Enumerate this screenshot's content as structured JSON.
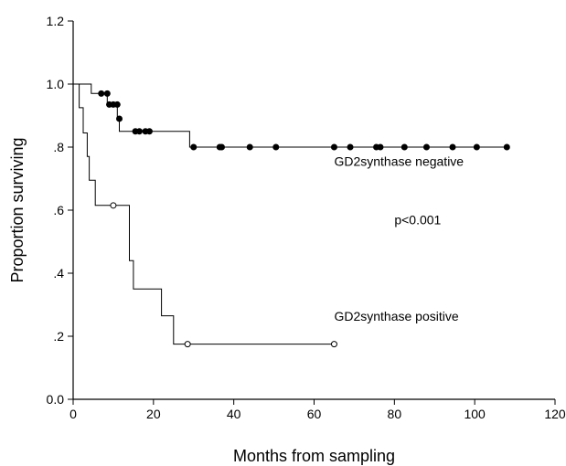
{
  "chart_data": {
    "type": "line",
    "subtype": "kaplan-meier-step",
    "xlabel": "Months from sampling",
    "ylabel": "Proportion surviving",
    "xlim": [
      0,
      120
    ],
    "ylim": [
      0.0,
      1.2
    ],
    "x_ticks": [
      0,
      20,
      40,
      60,
      80,
      100,
      120
    ],
    "x_tick_labels": [
      "0",
      "20",
      "40",
      "60",
      "80",
      "100",
      "120"
    ],
    "y_ticks": [
      0.0,
      0.2,
      0.4,
      0.6,
      0.8,
      1.0,
      1.2
    ],
    "y_tick_labels": [
      "0.0",
      ".2",
      ".4",
      ".6",
      ".8",
      "1.0",
      "1.2"
    ],
    "grid": false,
    "annotations": [
      {
        "text": "GD2synthase negative",
        "x": 65,
        "y": 0.74
      },
      {
        "text": "p<0.001",
        "x": 80,
        "y": 0.555
      },
      {
        "text": "GD2synthase positive",
        "x": 65,
        "y": 0.25
      }
    ],
    "series": [
      {
        "name": "GD2synthase negative",
        "color": "#000000",
        "marker": "filled-circle",
        "steps": [
          [
            0,
            1.0
          ],
          [
            4.5,
            1.0
          ],
          [
            4.5,
            0.97
          ],
          [
            8.5,
            0.97
          ],
          [
            8.5,
            0.935
          ],
          [
            11,
            0.935
          ],
          [
            11,
            0.89
          ],
          [
            11.5,
            0.89
          ],
          [
            11.5,
            0.85
          ],
          [
            29,
            0.85
          ],
          [
            29,
            0.8
          ],
          [
            108,
            0.8
          ]
        ],
        "censored": [
          [
            7,
            0.97
          ],
          [
            8.5,
            0.97
          ],
          [
            9,
            0.935
          ],
          [
            10,
            0.935
          ],
          [
            11,
            0.935
          ],
          [
            11.5,
            0.89
          ],
          [
            15.5,
            0.85
          ],
          [
            16.5,
            0.85
          ],
          [
            18,
            0.85
          ],
          [
            19,
            0.85
          ],
          [
            30,
            0.8
          ],
          [
            36.5,
            0.8
          ],
          [
            37,
            0.8
          ],
          [
            44,
            0.8
          ],
          [
            50.5,
            0.8
          ],
          [
            65,
            0.8
          ],
          [
            69,
            0.8
          ],
          [
            75.5,
            0.8
          ],
          [
            76.5,
            0.8
          ],
          [
            82.5,
            0.8
          ],
          [
            88,
            0.8
          ],
          [
            94.5,
            0.8
          ],
          [
            100.5,
            0.8
          ],
          [
            108,
            0.8
          ]
        ]
      },
      {
        "name": "GD2synthase positive",
        "color": "#000000",
        "marker": "open-circle",
        "steps": [
          [
            0,
            1.0
          ],
          [
            1.5,
            1.0
          ],
          [
            1.5,
            0.925
          ],
          [
            2.5,
            0.925
          ],
          [
            2.5,
            0.845
          ],
          [
            3.5,
            0.845
          ],
          [
            3.5,
            0.77
          ],
          [
            4,
            0.77
          ],
          [
            4,
            0.695
          ],
          [
            5.5,
            0.695
          ],
          [
            5.5,
            0.615
          ],
          [
            14,
            0.615
          ],
          [
            14,
            0.44
          ],
          [
            15,
            0.44
          ],
          [
            15,
            0.35
          ],
          [
            22,
            0.35
          ],
          [
            22,
            0.265
          ],
          [
            25,
            0.265
          ],
          [
            25,
            0.175
          ],
          [
            65,
            0.175
          ]
        ],
        "censored": [
          [
            10,
            0.615
          ],
          [
            28.5,
            0.175
          ],
          [
            65,
            0.175
          ]
        ]
      }
    ]
  }
}
